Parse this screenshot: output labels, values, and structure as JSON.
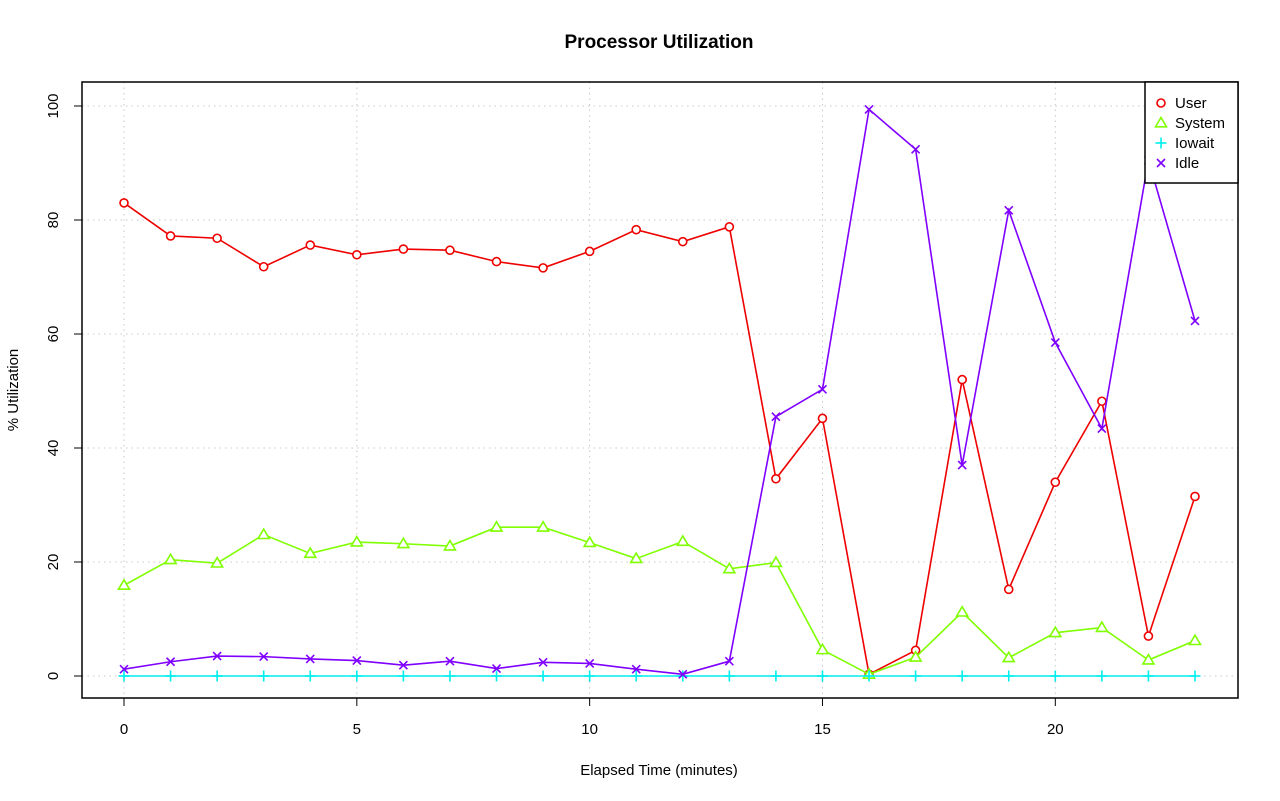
{
  "chart_data": {
    "type": "line",
    "title": "Processor Utilization",
    "xlabel": "Elapsed Time (minutes)",
    "ylabel": "% Utilization",
    "xlim": [
      0,
      23
    ],
    "ylim": [
      0,
      100
    ],
    "x_ticks": [
      0,
      5,
      10,
      15,
      20
    ],
    "y_ticks": [
      0,
      20,
      40,
      60,
      80,
      100
    ],
    "grid": true,
    "legend_position": "top-right",
    "x": [
      0,
      1,
      2,
      3,
      4,
      5,
      6,
      7,
      8,
      9,
      10,
      11,
      12,
      13,
      14,
      15,
      16,
      17,
      18,
      19,
      20,
      21,
      22,
      23
    ],
    "series": [
      {
        "name": "User",
        "color": "#ee0000",
        "marker": "circle",
        "values": [
          83.0,
          77.2,
          76.8,
          71.8,
          75.6,
          73.9,
          74.9,
          74.7,
          72.7,
          71.6,
          74.5,
          78.3,
          76.2,
          78.8,
          34.6,
          45.2,
          0.3,
          4.5,
          52.0,
          15.2,
          34.0,
          48.2,
          7.0,
          31.5
        ]
      },
      {
        "name": "System",
        "color": "#7fff00",
        "marker": "triangle",
        "values": [
          15.9,
          20.4,
          19.8,
          24.8,
          21.5,
          23.5,
          23.2,
          22.8,
          26.1,
          26.1,
          23.4,
          20.6,
          23.6,
          18.8,
          19.9,
          4.6,
          0.3,
          3.3,
          11.2,
          3.2,
          7.6,
          8.5,
          2.8,
          6.2
        ]
      },
      {
        "name": "Iowait",
        "color": "#00eeee",
        "marker": "plus",
        "values": [
          0,
          0,
          0,
          0,
          0,
          0,
          0,
          0,
          0,
          0,
          0,
          0,
          0,
          0,
          0,
          0,
          0,
          0,
          0,
          0,
          0,
          0,
          0,
          0
        ]
      },
      {
        "name": "Idle",
        "color": "#7f00ff",
        "marker": "cross",
        "values": [
          1.2,
          2.5,
          3.5,
          3.4,
          3.0,
          2.7,
          1.9,
          2.6,
          1.3,
          2.4,
          2.2,
          1.2,
          0.3,
          2.6,
          45.5,
          50.3,
          99.4,
          92.4,
          37.0,
          81.7,
          58.5,
          43.4,
          90.5,
          62.3
        ]
      }
    ]
  }
}
